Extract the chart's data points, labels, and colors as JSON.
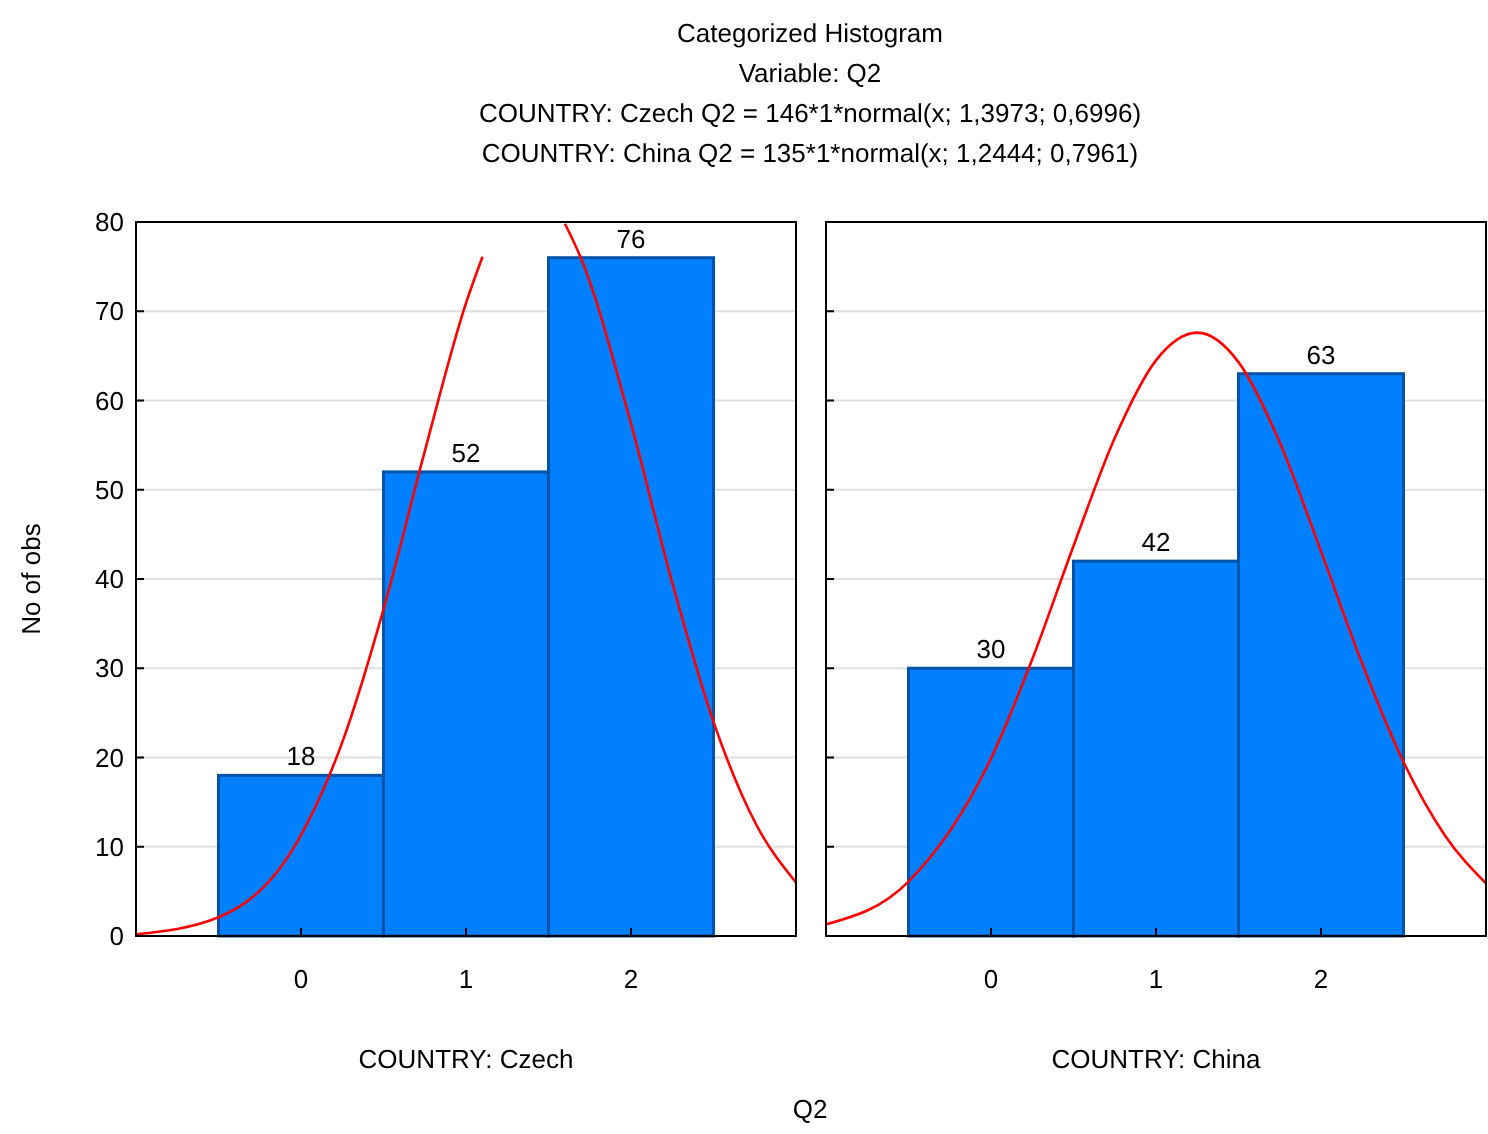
{
  "chart_data": [
    {
      "type": "histogram",
      "title": "Categorized Histogram",
      "subtitle": "Variable: Q2",
      "ylabel": "No of obs",
      "xlabel": "COUNTRY: Czech",
      "annotations": [
        "COUNTRY: Czech Q2 = 146*1*normal(x; 1,3973; 0,6996)",
        "Q2"
      ],
      "bins": [
        -0.5,
        0.5,
        1.5,
        2.5
      ],
      "values": [
        18,
        52,
        76
      ],
      "color": "#0080ff",
      "value_labels": [
        "18",
        "52",
        "76"
      ],
      "series": [
        {
          "type": "line",
          "color": "#ff0000",
          "x": [
            -1,
            -0.5,
            0,
            0.25,
            0.5,
            0.75,
            1,
            1.1,
            1.2,
            1.6,
            1.7,
            2,
            2.25,
            2.5,
            2.75,
            3
          ],
          "values": [
            0.2,
            2.1,
            11.3,
            21.7,
            36.6,
            54.3,
            70.9,
            76.1,
            null,
            79.8,
            75.8,
            57.4,
            39.6,
            24.0,
            12.8,
            6.0
          ]
        }
      ],
      "xlim": [
        -1,
        3
      ],
      "xticks": [
        0,
        1,
        2
      ],
      "ylim": [
        0,
        80
      ],
      "yticks": [
        0,
        10,
        20,
        30,
        40,
        50,
        60,
        70,
        80
      ],
      "grid": "y"
    },
    {
      "type": "histogram",
      "xlabel": "COUNTRY: China",
      "annotations": [
        "COUNTRY: China Q2 = 135*1*normal(x; 1,2444; 0,7961)"
      ],
      "bins": [
        -0.5,
        0.5,
        1.5,
        2.5
      ],
      "values": [
        30,
        42,
        63
      ],
      "color": "#0080ff",
      "value_labels": [
        "30",
        "42",
        "63"
      ],
      "series": [
        {
          "type": "line",
          "color": "#ff0000",
          "x": [
            -1,
            -0.5,
            0,
            0.25,
            0.5,
            0.75,
            1,
            1.25,
            1.5,
            1.75,
            2,
            2.25,
            2.5,
            2.75,
            3
          ],
          "values": [
            1.3,
            6.1,
            19.9,
            31.0,
            43.7,
            55.8,
            64.5,
            67.6,
            64.3,
            55.3,
            43.1,
            30.5,
            19.5,
            11.3,
            5.9
          ]
        }
      ],
      "xlim": [
        -1,
        3
      ],
      "xticks": [
        0,
        1,
        2
      ],
      "ylim": [
        0,
        80
      ],
      "yticks": [
        0,
        10,
        20,
        30,
        40,
        50,
        60,
        70,
        80
      ],
      "grid": "y",
      "tick_labels": "x"
    }
  ]
}
